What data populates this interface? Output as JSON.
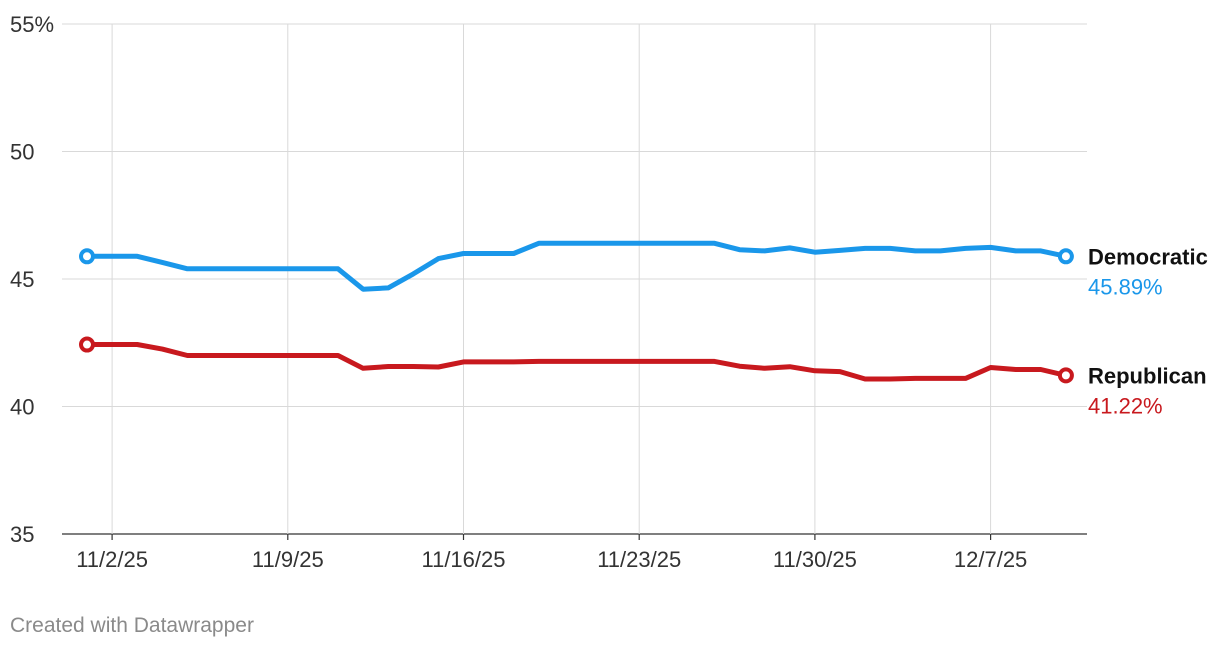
{
  "chart_data": {
    "type": "line",
    "title": "",
    "xlabel": "",
    "ylabel": "",
    "ylim": [
      35,
      55
    ],
    "y_ticks": [
      {
        "value": 55,
        "label": "55%"
      },
      {
        "value": 50,
        "label": "50"
      },
      {
        "value": 45,
        "label": "45"
      },
      {
        "value": 40,
        "label": "40"
      },
      {
        "value": 35,
        "label": "35"
      }
    ],
    "x_ticks": [
      "11/2/25",
      "11/9/25",
      "11/16/25",
      "11/23/25",
      "11/30/25",
      "12/7/25"
    ],
    "x": [
      "11/1/25",
      "11/2/25",
      "11/3/25",
      "11/4/25",
      "11/5/25",
      "11/6/25",
      "11/7/25",
      "11/8/25",
      "11/9/25",
      "11/10/25",
      "11/11/25",
      "11/12/25",
      "11/13/25",
      "11/14/25",
      "11/15/25",
      "11/16/25",
      "11/17/25",
      "11/18/25",
      "11/19/25",
      "11/20/25",
      "11/21/25",
      "11/22/25",
      "11/23/25",
      "11/24/25",
      "11/25/25",
      "11/26/25",
      "11/27/25",
      "11/28/25",
      "11/29/25",
      "11/30/25",
      "12/1/25",
      "12/2/25",
      "12/3/25",
      "12/4/25",
      "12/5/25",
      "12/6/25",
      "12/7/25",
      "12/8/25",
      "12/9/25",
      "12/10/25"
    ],
    "series": [
      {
        "name": "Democratic",
        "label_value": "45.89%",
        "color": "#1a97ea",
        "values": [
          45.89,
          45.89,
          45.89,
          45.65,
          45.4,
          45.4,
          45.4,
          45.4,
          45.4,
          45.4,
          45.4,
          44.6,
          44.65,
          45.2,
          45.8,
          46.0,
          46.0,
          46.0,
          46.4,
          46.4,
          46.4,
          46.4,
          46.4,
          46.4,
          46.4,
          46.4,
          46.15,
          46.1,
          46.22,
          46.05,
          46.12,
          46.2,
          46.2,
          46.1,
          46.1,
          46.2,
          46.24,
          46.1,
          46.1,
          45.89
        ]
      },
      {
        "name": "Republican",
        "label_value": "41.22%",
        "color": "#c8191e",
        "values": [
          42.43,
          42.43,
          42.43,
          42.25,
          42.0,
          42.0,
          42.0,
          42.0,
          42.0,
          42.0,
          42.0,
          41.5,
          41.57,
          41.57,
          41.55,
          41.75,
          41.75,
          41.75,
          41.77,
          41.77,
          41.77,
          41.77,
          41.77,
          41.77,
          41.77,
          41.77,
          41.58,
          41.5,
          41.56,
          41.4,
          41.37,
          41.08,
          41.08,
          41.1,
          41.1,
          41.1,
          41.53,
          41.45,
          41.45,
          41.22
        ]
      }
    ],
    "grid": true,
    "legend": "end-labels"
  },
  "footer": {
    "credit": "Created with Datawrapper"
  }
}
